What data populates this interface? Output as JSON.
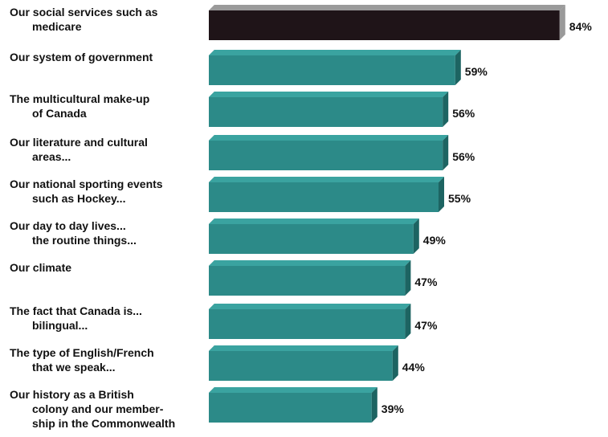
{
  "chart_data": {
    "type": "bar",
    "orientation": "horizontal",
    "categories": [
      [
        "Our social services such as",
        "medicare"
      ],
      [
        "Our system of government"
      ],
      [
        "The multicultural make-up",
        "of Canada"
      ],
      [
        "Our literature and cultural",
        "areas..."
      ],
      [
        "Our national sporting events",
        "such as Hockey..."
      ],
      [
        "Our day to day lives...",
        "the routine things..."
      ],
      [
        "Our climate"
      ],
      [
        "The fact that Canada is...",
        "bilingual..."
      ],
      [
        "The type of English/French",
        "that we speak..."
      ],
      [
        "Our history as a British",
        "colony and our member-",
        "ship in the Commonwealth"
      ]
    ],
    "values": [
      84,
      59,
      56,
      56,
      55,
      49,
      47,
      47,
      44,
      39
    ],
    "value_labels": [
      "84%",
      "59%",
      "56%",
      "56%",
      "55%",
      "49%",
      "47%",
      "47%",
      "44%",
      "39%"
    ],
    "unit": "%",
    "grid": false,
    "highlight_index": 0,
    "colors": {
      "highlight": "#1f1418",
      "highlight_side": "#9a9a9a",
      "bar": "#2c8a88",
      "bar_side": "#1d6462",
      "bar_top": "#3aa3a0"
    }
  }
}
